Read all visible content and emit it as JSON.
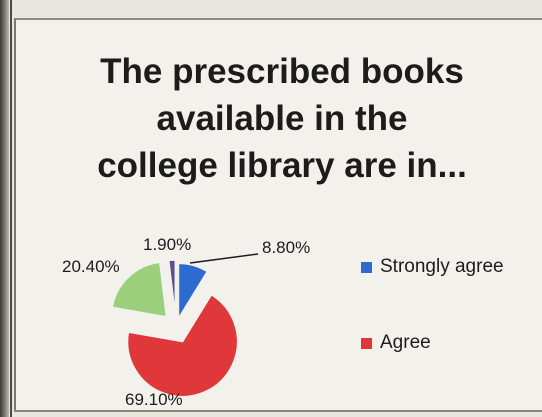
{
  "chart_data": {
    "type": "pie",
    "title": [
      "The prescribed books",
      "available in the",
      "college library are in..."
    ],
    "slices": [
      {
        "label": "Strongly agree",
        "value": 8.8,
        "display": "8.80%",
        "color": "#2e6bd1"
      },
      {
        "label": "Agree",
        "value": 69.1,
        "display": "69.10%",
        "color": "#e0373a"
      },
      {
        "label": "",
        "value": 20.4,
        "display": "20.40%",
        "color": "#9ccf7c"
      },
      {
        "label": "",
        "value": 1.9,
        "display": "1.90%",
        "color": "#5d4f8f"
      }
    ],
    "legend": [
      "Strongly agree",
      "Agree"
    ],
    "legend_position": "right"
  }
}
